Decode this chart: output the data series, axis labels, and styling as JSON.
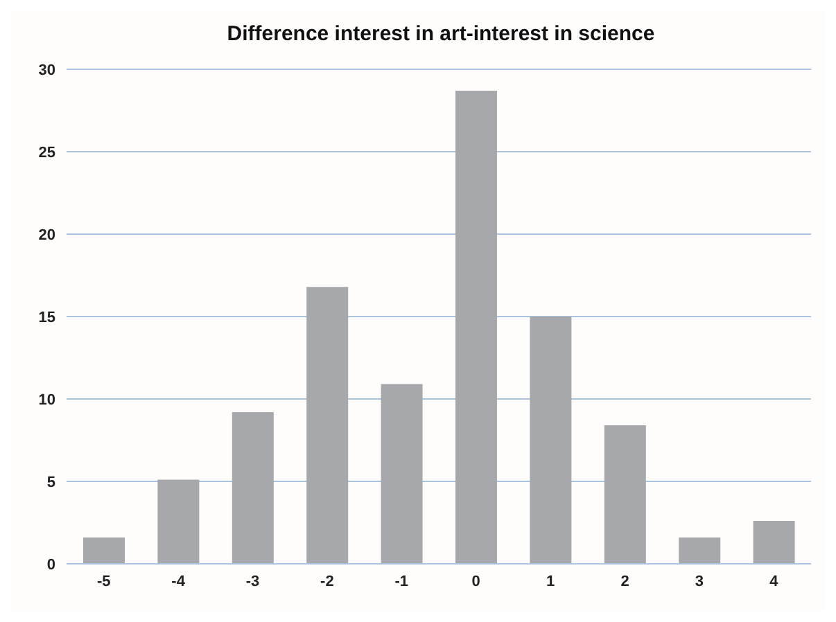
{
  "chart_data": {
    "type": "bar",
    "title": "Difference interest in art-interest in science",
    "categories": [
      "-5",
      "-4",
      "-3",
      "-2",
      "-1",
      "0",
      "1",
      "2",
      "3",
      "4"
    ],
    "values": [
      1.6,
      5.1,
      9.2,
      16.8,
      10.9,
      28.7,
      15.0,
      8.4,
      1.6,
      2.6
    ],
    "color": "#a6a8ab",
    "ylim": [
      0,
      30
    ],
    "yticks": [
      0,
      5,
      10,
      15,
      20,
      25,
      30
    ],
    "grid": "y"
  }
}
